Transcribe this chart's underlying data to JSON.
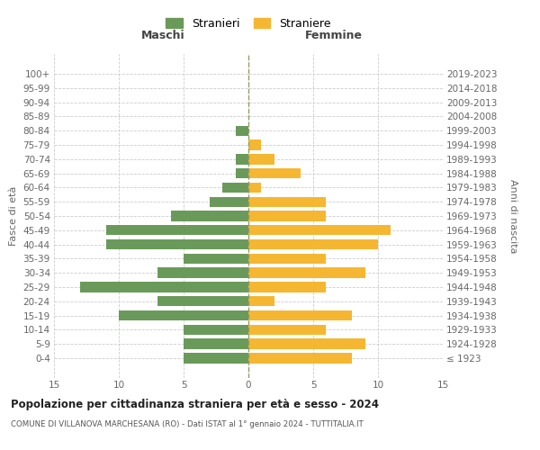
{
  "age_groups": [
    "100+",
    "95-99",
    "90-94",
    "85-89",
    "80-84",
    "75-79",
    "70-74",
    "65-69",
    "60-64",
    "55-59",
    "50-54",
    "45-49",
    "40-44",
    "35-39",
    "30-34",
    "25-29",
    "20-24",
    "15-19",
    "10-14",
    "5-9",
    "0-4"
  ],
  "birth_years": [
    "≤ 1923",
    "1924-1928",
    "1929-1933",
    "1934-1938",
    "1939-1943",
    "1944-1948",
    "1949-1953",
    "1954-1958",
    "1959-1963",
    "1964-1968",
    "1969-1973",
    "1974-1978",
    "1979-1983",
    "1984-1988",
    "1989-1993",
    "1994-1998",
    "1999-2003",
    "2004-2008",
    "2009-2013",
    "2014-2018",
    "2019-2023"
  ],
  "males": [
    0,
    0,
    0,
    0,
    1,
    0,
    1,
    1,
    2,
    3,
    6,
    11,
    11,
    5,
    7,
    13,
    7,
    10,
    5,
    5,
    5
  ],
  "females": [
    0,
    0,
    0,
    0,
    0,
    1,
    2,
    4,
    1,
    6,
    6,
    11,
    10,
    6,
    9,
    6,
    2,
    8,
    6,
    9,
    8
  ],
  "male_color": "#6a9a5a",
  "female_color": "#f5b731",
  "male_label": "Stranieri",
  "female_label": "Straniere",
  "title": "Popolazione per cittadinanza straniera per età e sesso - 2024",
  "subtitle": "COMUNE DI VILLANOVA MARCHESANA (RO) - Dati ISTAT al 1° gennaio 2024 - TUTTITALIA.IT",
  "xlabel_left": "Maschi",
  "xlabel_right": "Femmine",
  "ylabel_left": "Fasce di età",
  "ylabel_right": "Anni di nascita",
  "xlim": 15,
  "background_color": "#ffffff",
  "grid_color": "#cccccc"
}
